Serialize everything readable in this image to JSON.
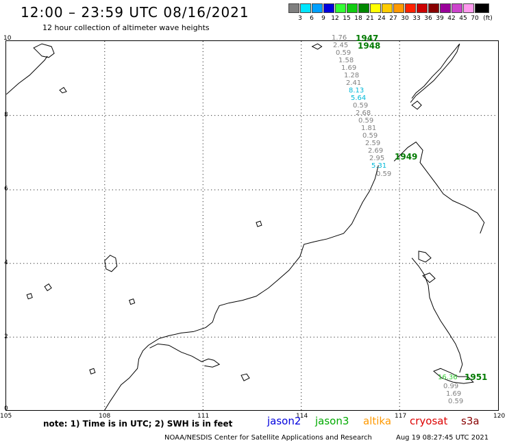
{
  "header": {
    "title": "12:00 – 23:59 UTC 08/16/2021",
    "subtitle": "12 hour collection of altimeter wave heights"
  },
  "scale": {
    "unit": "(ft)",
    "steps": [
      {
        "label": "3",
        "color": "#7f7f7f"
      },
      {
        "label": "6",
        "color": "#00e5ff"
      },
      {
        "label": "9",
        "color": "#00a0ff"
      },
      {
        "label": "12",
        "color": "#0000dd"
      },
      {
        "label": "15",
        "color": "#33ff33"
      },
      {
        "label": "18",
        "color": "#11cc11"
      },
      {
        "label": "21",
        "color": "#008800"
      },
      {
        "label": "24",
        "color": "#ffff00"
      },
      {
        "label": "27",
        "color": "#ffcc00"
      },
      {
        "label": "30",
        "color": "#ff9900"
      },
      {
        "label": "33",
        "color": "#ff2200"
      },
      {
        "label": "36",
        "color": "#cc0000"
      },
      {
        "label": "39",
        "color": "#880000"
      },
      {
        "label": "42",
        "color": "#990099"
      },
      {
        "label": "45",
        "color": "#cc44cc"
      },
      {
        "label": "70",
        "color": "#ff99ee"
      },
      {
        "label": "",
        "color": "#000000"
      }
    ]
  },
  "map": {
    "lat_labels": [
      "10",
      "8",
      "6",
      "4",
      "2",
      "0"
    ],
    "lon_labels": [
      "105",
      "108",
      "111",
      "114",
      "117",
      "120"
    ],
    "measurements": [
      {
        "text": "1.76",
        "color": "#808080"
      },
      {
        "text": "2.45",
        "color": "#808080"
      },
      {
        "text": "0.59",
        "color": "#808080"
      },
      {
        "text": "1.58",
        "color": "#808080"
      },
      {
        "text": "1.69",
        "color": "#808080"
      },
      {
        "text": "1.28",
        "color": "#808080"
      },
      {
        "text": "2.41",
        "color": "#808080"
      },
      {
        "text": "8.13",
        "color": "#00b8d8"
      },
      {
        "text": "5.64",
        "color": "#00b8d8"
      },
      {
        "text": "0.59",
        "color": "#808080"
      },
      {
        "text": "2.68",
        "color": "#808080"
      },
      {
        "text": "0.59",
        "color": "#808080"
      },
      {
        "text": "1.81",
        "color": "#808080"
      },
      {
        "text": "0.59",
        "color": "#808080"
      },
      {
        "text": "2.59",
        "color": "#808080"
      },
      {
        "text": "2.69",
        "color": "#808080"
      },
      {
        "text": "2.95",
        "color": "#808080"
      },
      {
        "text": "5.31",
        "color": "#00b8d8"
      },
      {
        "text": "0.59",
        "color": "#808080"
      },
      {
        "text": "16.36",
        "color": "#33cc33"
      },
      {
        "text": "0.99",
        "color": "#808080"
      },
      {
        "text": "1.69",
        "color": "#808080"
      },
      {
        "text": "0.59",
        "color": "#808080"
      }
    ],
    "pass_times": [
      {
        "text": "1947",
        "color": "#007a00"
      },
      {
        "text": "1948",
        "color": "#007a00"
      },
      {
        "text": "1949",
        "color": "#007a00"
      },
      {
        "text": "1951",
        "color": "#007a00"
      }
    ]
  },
  "footer": {
    "note": "note:  1) Time is in UTC;  2) SWH is in feet",
    "satellites": [
      {
        "name": "jason2",
        "color": "#0000dd"
      },
      {
        "name": "jason3",
        "color": "#00aa00"
      },
      {
        "name": "altika",
        "color": "#ff9900"
      },
      {
        "name": "cryosat",
        "color": "#dd0000"
      },
      {
        "name": "s3a",
        "color": "#880000"
      }
    ],
    "credit": "NOAA/NESDIS Center for Satellite Applications and Research",
    "timestamp": "Aug 19 08:27:45 UTC 2021"
  }
}
